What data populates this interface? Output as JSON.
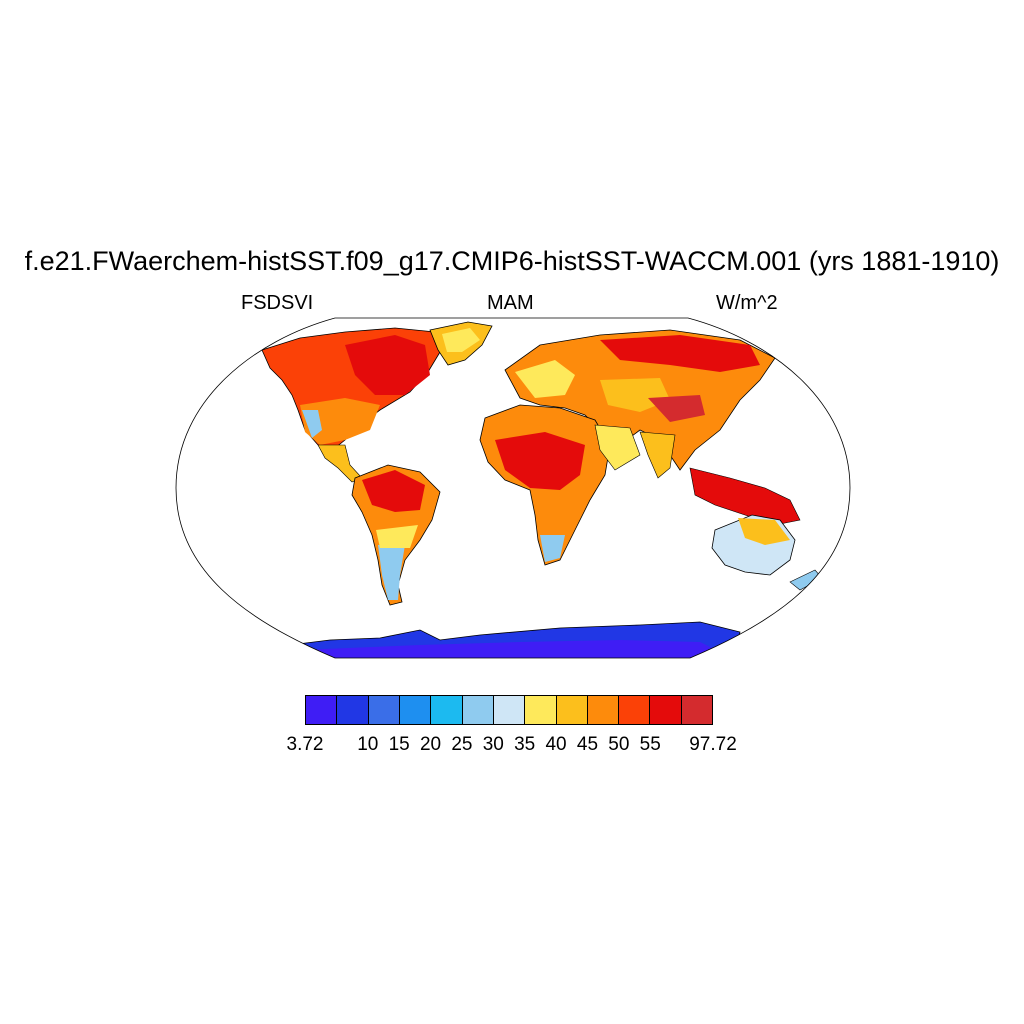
{
  "title": "f.e21.FWaerchem-histSST.f09_g17.CMIP6-histSST-WACCM.001 (yrs 1881-1910)",
  "subtitle": {
    "left": "FSDSVI",
    "center": "MAM",
    "right": "W/m^2"
  },
  "colorbar": {
    "colors": [
      "#3f1df5",
      "#2137e5",
      "#3a6ee8",
      "#1e8ff0",
      "#1cbaf0",
      "#8fcbef",
      "#cfe6f6",
      "#fee95b",
      "#fcbf1c",
      "#fd8b0c",
      "#fb4107",
      "#e40b0b",
      "#d42b2e"
    ],
    "labels": [
      "3.72",
      "10",
      "15",
      "20",
      "25",
      "30",
      "35",
      "40",
      "45",
      "50",
      "55",
      "97.72"
    ],
    "label_boundaries": [
      0,
      2,
      3,
      4,
      5,
      6,
      7,
      8,
      9,
      10,
      11,
      13
    ]
  },
  "map": {
    "projection": "Robinson",
    "ocean_color": "#ffffff",
    "coastline_color": "#000000",
    "land_fill_note_colors": {
      "antarctica": "#2137e5",
      "antarctica_interior": "#3f1df5",
      "greenland": "#fb4107",
      "tropics": "#e40b0b",
      "deserts": "#fd8b0c",
      "midlat": "#fcbf1c",
      "south_cone": "#8fcbef",
      "australia": "#cfe6f6"
    }
  }
}
